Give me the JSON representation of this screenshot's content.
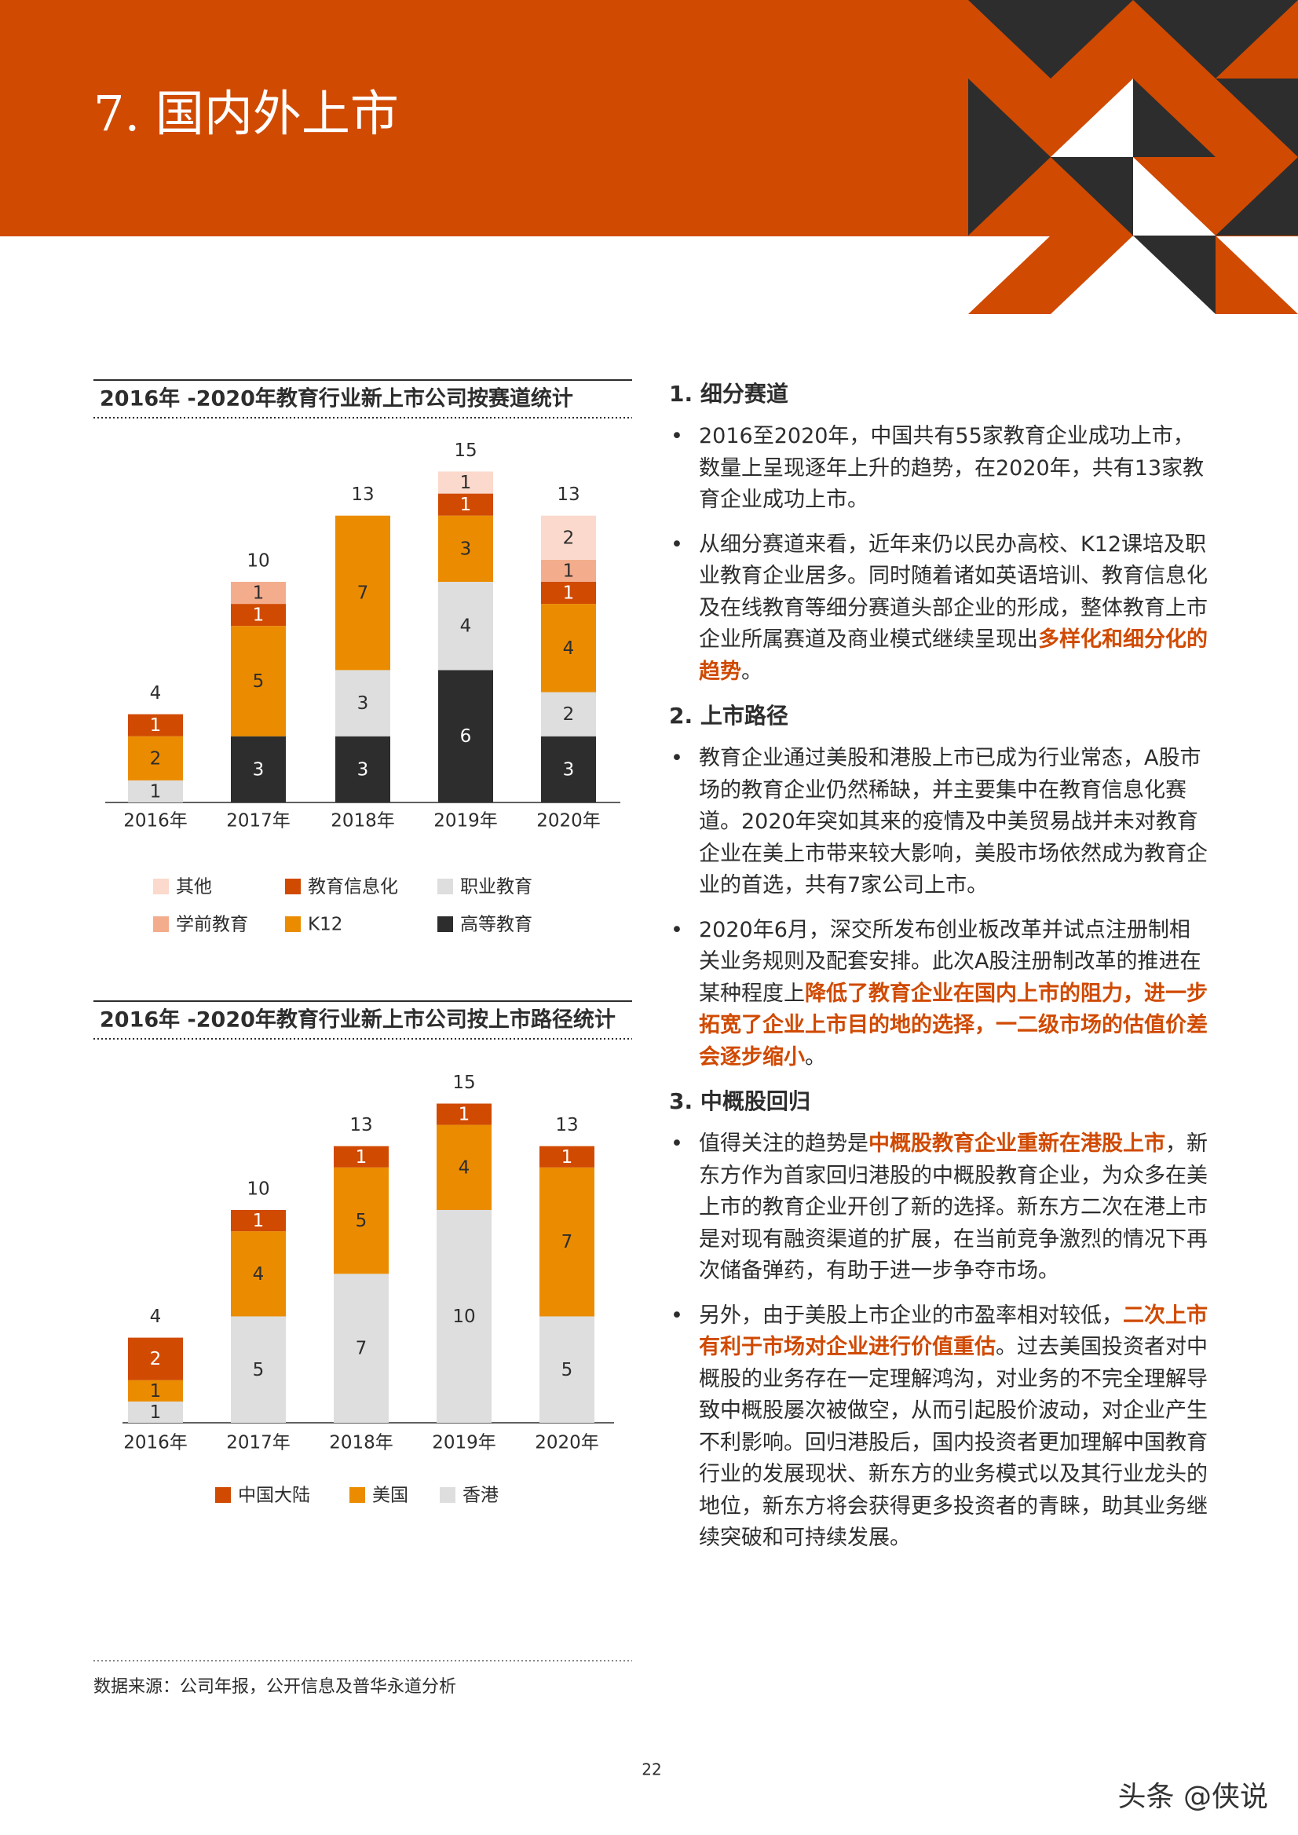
{
  "header": {
    "title": "7. 国内外上市"
  },
  "chart_data": [
    {
      "type": "bar",
      "stacked": true,
      "title": "2016年 -2020年教育行业新上市公司按赛道统计",
      "categories": [
        "2016年",
        "2017年",
        "2018年",
        "2019年",
        "2020年"
      ],
      "series": [
        {
          "name": "高等教育",
          "color": "#2d2d2d",
          "values": [
            null,
            3,
            3,
            6,
            3
          ]
        },
        {
          "name": "职业教育",
          "color": "#dedede",
          "values": [
            1,
            null,
            3,
            4,
            2
          ]
        },
        {
          "name": "K12",
          "color": "#eb8c00",
          "values": [
            2,
            5,
            7,
            3,
            4
          ]
        },
        {
          "name": "教育信息化",
          "color": "#d04a02",
          "values": [
            1,
            1,
            null,
            1,
            1
          ]
        },
        {
          "name": "学前教育",
          "color": "#f4ad8c",
          "values": [
            null,
            1,
            null,
            null,
            1
          ]
        },
        {
          "name": "其他",
          "color": "#fbd9cc",
          "values": [
            null,
            null,
            null,
            1,
            2
          ]
        }
      ],
      "totals": [
        4,
        10,
        13,
        15,
        13
      ]
    },
    {
      "type": "bar",
      "stacked": true,
      "title": "2016年 -2020年教育行业新上市公司按上市路径统计",
      "categories": [
        "2016年",
        "2017年",
        "2018年",
        "2019年",
        "2020年"
      ],
      "series": [
        {
          "name": "香港",
          "color": "#dedede",
          "values": [
            1,
            5,
            7,
            10,
            5
          ]
        },
        {
          "name": "美国",
          "color": "#eb8c00",
          "values": [
            1,
            4,
            5,
            4,
            7
          ]
        },
        {
          "name": "中国大陆",
          "color": "#d04a02",
          "values": [
            2,
            1,
            1,
            1,
            1
          ]
        }
      ],
      "totals": [
        4,
        10,
        13,
        15,
        13
      ]
    }
  ],
  "sections": [
    {
      "heading": "1. 细分赛道",
      "bullets": [
        [
          "2016至2020年，中国共有55家教育企业成功上市，数量上呈现逐年上升的趋势，在2020年，共有13家教育企业成功上市。"
        ],
        [
          "从细分赛道来看，近年来仍以民办高校、K12课培及职业教育企业居多。同时随着诸如英语培训、教育信息化及在线教育等细分赛道头部企业的形成，整体教育上市企业所属赛道及商业模式继续呈现出",
          {
            "text": "多样化和细分化的趋势",
            "highlight": true
          },
          "。"
        ]
      ]
    },
    {
      "heading": "2. 上市路径",
      "bullets": [
        [
          "教育企业通过美股和港股上市已成为行业常态，A股市场的教育企业仍然稀缺，并主要集中在教育信息化赛道。2020年突如其来的疫情及中美贸易战并未对教育企业在美上市带来较大影响，美股市场依然成为教育企业的首选，共有7家公司上市。"
        ],
        [
          "2020年6月，深交所发布创业板改革并试点注册制相关业务规则及配套安排。此次A股注册制改革的推进在某种程度上",
          {
            "text": "降低了教育企业在国内上市的阻力，进一步拓宽了企业上市目的地的选择，一二级市场的估值价差会逐步缩小",
            "highlight": true
          },
          "。"
        ]
      ]
    },
    {
      "heading": "3. 中概股回归",
      "bullets": [
        [
          "值得关注的趋势是",
          {
            "text": "中概股教育企业重新在港股上市",
            "highlight": true
          },
          "，新东方作为首家回归港股的中概股教育企业，为众多在美上市的教育企业开创了新的选择。新东方二次在港上市是对现有融资渠道的扩展，在当前竞争激烈的情况下再次储备弹药，有助于进一步争夺市场。"
        ],
        [
          "另外，由于美股上市企业的市盈率相对较低，",
          {
            "text": "二次上市有利于市场对企业进行价值重估",
            "highlight": true
          },
          "。过去美国投资者对中概股的业务存在一定理解鸿沟，对业务的不完全理解导致中概股屡次被做空，从而引起股价波动，对企业产生不利影响。回归港股后，国内投资者更加理解中国教育行业的发展现状、新东方的业务模式以及其行业龙头的地位，新东方将会获得更多投资者的青睐，助其业务继续突破和可持续发展。"
        ]
      ]
    }
  ],
  "source": "数据来源：公司年报，公开信息及普华永道分析",
  "page_number": 22,
  "watermark": "头条 @侠说"
}
